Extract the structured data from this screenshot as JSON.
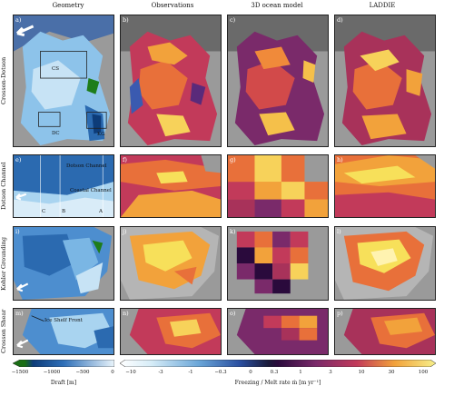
{
  "columns": [
    "Geometry",
    "Observations",
    "3D ocean model",
    "LADDIE"
  ],
  "rows": [
    "Crosson-Dotson",
    "Dotson Channel",
    "Kohler Grounding",
    "Crosson Shear"
  ],
  "panel_labels": [
    "a)",
    "b)",
    "c)",
    "d)",
    "e)",
    "f)",
    "g)",
    "h)",
    "i)",
    "j)",
    "k)",
    "l)",
    "m)",
    "n)",
    "o)",
    "p)"
  ],
  "annotations": {
    "cs": "CS",
    "dc": "DC",
    "kg": "KG",
    "dotson_channel": "Dotson Channel",
    "coastal_channel": "Coastal Channel",
    "a": "A",
    "b": "B",
    "c": "C",
    "ice_shelf_front": "Ice Shelf Front"
  },
  "colorbars": {
    "draft": {
      "ticks": [
        "−1500",
        "−1000",
        "−500",
        "0"
      ],
      "label": "Draft [m]"
    },
    "melt": {
      "ticks": [
        "−10",
        "-3",
        "-1",
        "−0.3",
        "0",
        "0.3",
        "1",
        "3",
        "10",
        "30",
        "100"
      ],
      "label": "Freezing / Melt rate ṁ [m yr⁻¹]"
    }
  },
  "colors": {
    "draft_low": "#1a6e14",
    "draft_mid": "#2e6fb8",
    "draft_high": "#e9f4fb",
    "melt_cold": "#2a4fa0",
    "melt_zero": "#2a0a3c",
    "melt_mid": "#c23a5a",
    "melt_hot": "#f7e05a",
    "land": "#b5b5b5",
    "ocean": "#7a7a7a"
  }
}
